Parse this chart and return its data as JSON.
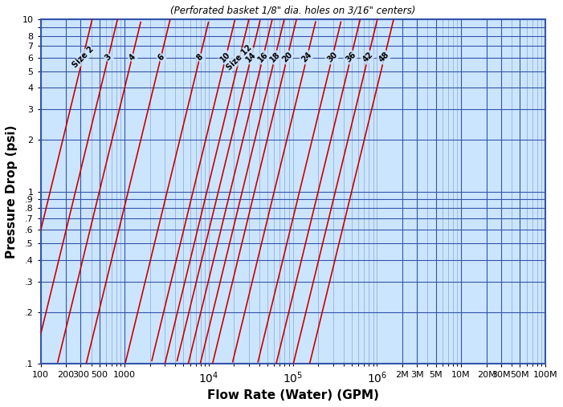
{
  "title": "(Perforated basket 1/8\" dia. holes on 3/16\" centers)",
  "xlabel": "Flow Rate (Water) (GPM)",
  "ylabel": "Pressure Drop (psi)",
  "x_min": 100,
  "x_max": 100000000,
  "y_min": 0.1,
  "y_max": 10,
  "bg_color": "#cce5ff",
  "line_color": "#cc0000",
  "grid_major_color": "#3355aa",
  "grid_minor_color": "#7799cc",
  "xtick_labels": [
    "100",
    "200",
    "300",
    "500",
    "1000",
    "2M",
    "3M",
    "5M",
    "10M",
    "20M",
    "30M",
    "50M",
    "100M"
  ],
  "xtick_values": [
    100,
    200,
    300,
    500,
    1000,
    2000000,
    3000000,
    5000000,
    10000000,
    20000000,
    30000000,
    50000000,
    100000000
  ],
  "ytick_labels": [
    "10",
    "8",
    "7",
    "6",
    "5",
    "4",
    "3",
    "2",
    "1",
    ".9",
    ".8",
    ".7",
    ".6",
    ".5",
    ".4",
    ".3",
    ".2",
    ".1"
  ],
  "ytick_values": [
    10,
    8,
    7,
    6,
    5,
    4,
    3,
    2,
    1,
    0.9,
    0.8,
    0.7,
    0.6,
    0.5,
    0.4,
    0.3,
    0.2,
    0.1
  ],
  "sizes": [
    "Size 2",
    "3",
    "4",
    "6",
    "8",
    "10",
    "Size 12",
    "14",
    "16",
    "18",
    "20",
    "24",
    "30",
    "36",
    "42",
    "48"
  ],
  "slope": 2.0,
  "line_x_at_y1": [
    130,
    260,
    500,
    1100,
    3200,
    6500,
    9500,
    13000,
    18000,
    25000,
    35000,
    60000,
    120000,
    200000,
    320000,
    500000
  ]
}
